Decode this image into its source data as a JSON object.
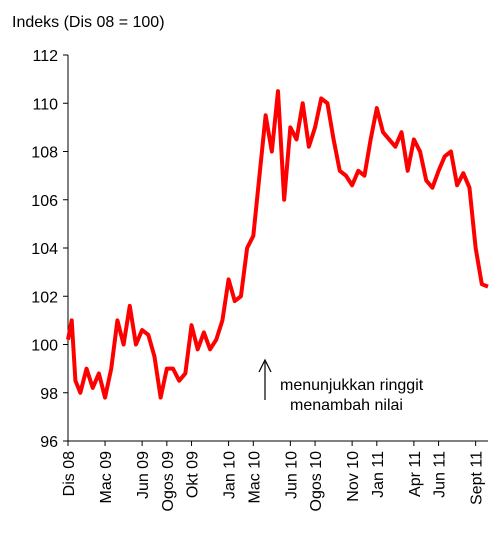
{
  "chart_data": {
    "type": "line",
    "title": "Indeks (Dis 08 = 100)",
    "annotations": [
      "menunjukkan ringgit",
      "menambah nilai"
    ],
    "xlim": [
      0,
      34
    ],
    "xticks": [
      {
        "value": 0,
        "label": "Dis 08"
      },
      {
        "value": 3,
        "label": "Mac 09"
      },
      {
        "value": 6,
        "label": "Jun 09"
      },
      {
        "value": 8,
        "label": "Ogos 09"
      },
      {
        "value": 10,
        "label": "Okt 09"
      },
      {
        "value": 13,
        "label": "Jan 10"
      },
      {
        "value": 15,
        "label": "Mac 10"
      },
      {
        "value": 18,
        "label": "Jun 10"
      },
      {
        "value": 20,
        "label": "Ogos 10"
      },
      {
        "value": 23,
        "label": "Nov 10"
      },
      {
        "value": 25,
        "label": "Jan 11"
      },
      {
        "value": 28,
        "label": "Apr 11"
      },
      {
        "value": 30,
        "label": "Jun 11"
      },
      {
        "value": 33,
        "label": "Sept 11"
      }
    ],
    "ylim": [
      96,
      112
    ],
    "yticks": [
      96,
      98,
      100,
      102,
      104,
      106,
      108,
      110,
      112
    ],
    "series": [
      {
        "color": "#ff0000",
        "x": [
          0,
          0.3,
          0.6,
          1,
          1.5,
          2,
          2.5,
          3,
          3.5,
          4,
          4.5,
          5,
          5.5,
          6,
          6.5,
          7,
          7.5,
          8,
          8.5,
          9,
          9.5,
          10,
          10.5,
          11,
          11.5,
          12,
          12.5,
          13,
          13.5,
          14,
          14.5,
          15,
          15.5,
          16,
          16.5,
          17,
          17.5,
          18,
          18.5,
          19,
          19.5,
          20,
          20.5,
          21,
          21.5,
          22,
          22.5,
          23,
          23.5,
          24,
          24.5,
          25,
          25.5,
          26,
          26.5,
          27,
          27.5,
          28,
          28.5,
          29,
          29.5,
          30,
          30.5,
          31,
          31.5,
          32,
          32.5,
          33,
          33.5,
          34
        ],
        "values": [
          100.2,
          101,
          98.5,
          98,
          99,
          98.2,
          98.8,
          97.8,
          99,
          101,
          100,
          101.6,
          100,
          100.6,
          100.4,
          99.5,
          97.8,
          99,
          99,
          98.5,
          98.8,
          100.8,
          99.8,
          100.5,
          99.8,
          100.2,
          101,
          102.7,
          101.8,
          102,
          104,
          104.5,
          107,
          109.5,
          108,
          110.5,
          106,
          109,
          108.5,
          110,
          108.2,
          109,
          110.2,
          110,
          108.5,
          107.2,
          107,
          106.6,
          107.2,
          107,
          108.5,
          109.8,
          108.8,
          108.5,
          108.2,
          108.8,
          107.2,
          108.5,
          108,
          106.8,
          106.5,
          107.2,
          107.8,
          108,
          106.6,
          107.1,
          106.5,
          104,
          102.5,
          102.4
        ]
      }
    ]
  }
}
